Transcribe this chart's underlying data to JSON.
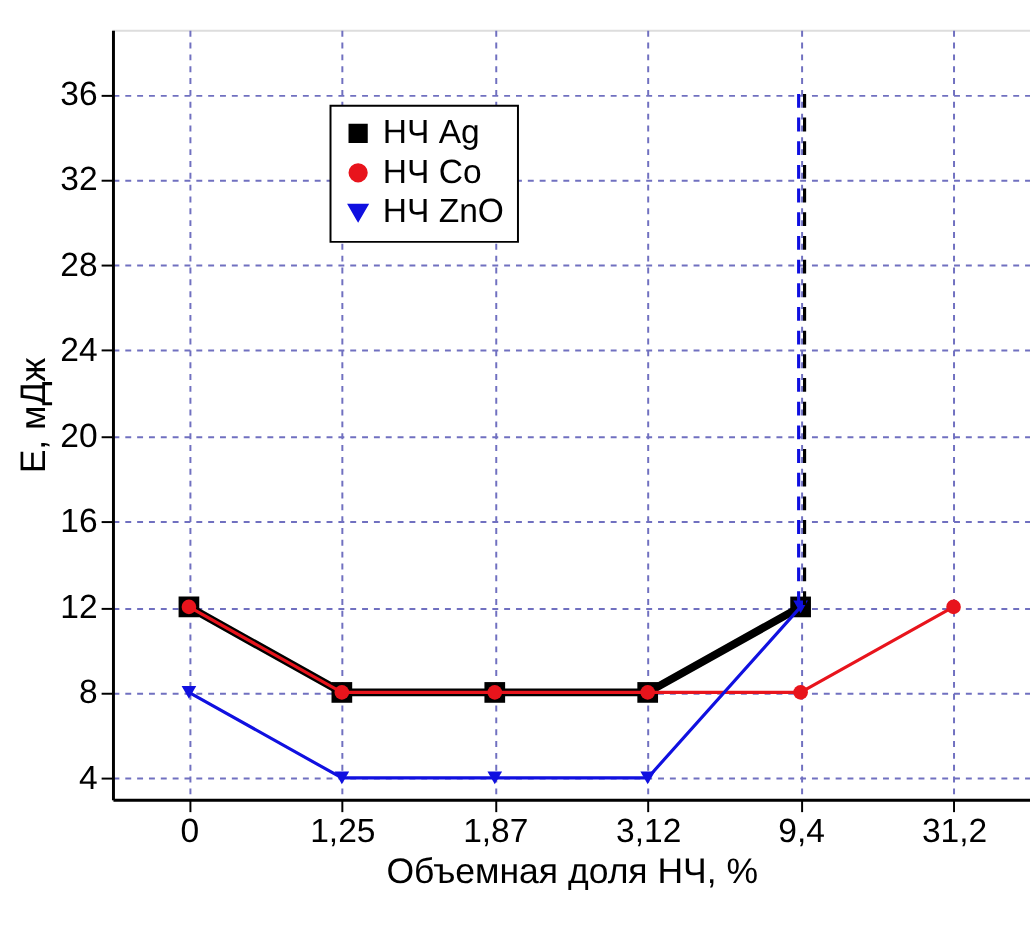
{
  "chart_data": {
    "type": "line",
    "xlabel": "Объемная доля НЧ, %",
    "ylabel": "E, мДж",
    "categories": [
      "0",
      "1,25",
      "1,87",
      "3,12",
      "9,4",
      "31,2"
    ],
    "series": [
      {
        "name": "НЧ Ag",
        "color": "#000000",
        "marker": "square",
        "values": [
          12,
          8,
          8,
          8,
          12,
          null
        ]
      },
      {
        "name": "НЧ Co",
        "color": "#e8141c",
        "marker": "circle",
        "values": [
          12,
          8,
          8,
          8,
          8,
          12
        ]
      },
      {
        "name": "НЧ ZnO",
        "color": "#1010e0",
        "marker": "triangle",
        "values": [
          8,
          4,
          4,
          4,
          12,
          null
        ]
      },
      {
        "color": "#000000",
        "line_style": "dashed",
        "x": [
          "9,4",
          "9,4"
        ],
        "values": [
          12,
          36
        ]
      },
      {
        "color": "#1010e0",
        "line_style": "dashed",
        "x": [
          "9,4",
          "9,4"
        ],
        "values": [
          12,
          36
        ]
      }
    ],
    "ylim": [
      3,
      39
    ],
    "yticks": [
      4,
      8,
      12,
      16,
      20,
      24,
      28,
      32,
      36
    ],
    "grid": true,
    "legend": "top left",
    "line_style": "solid"
  }
}
